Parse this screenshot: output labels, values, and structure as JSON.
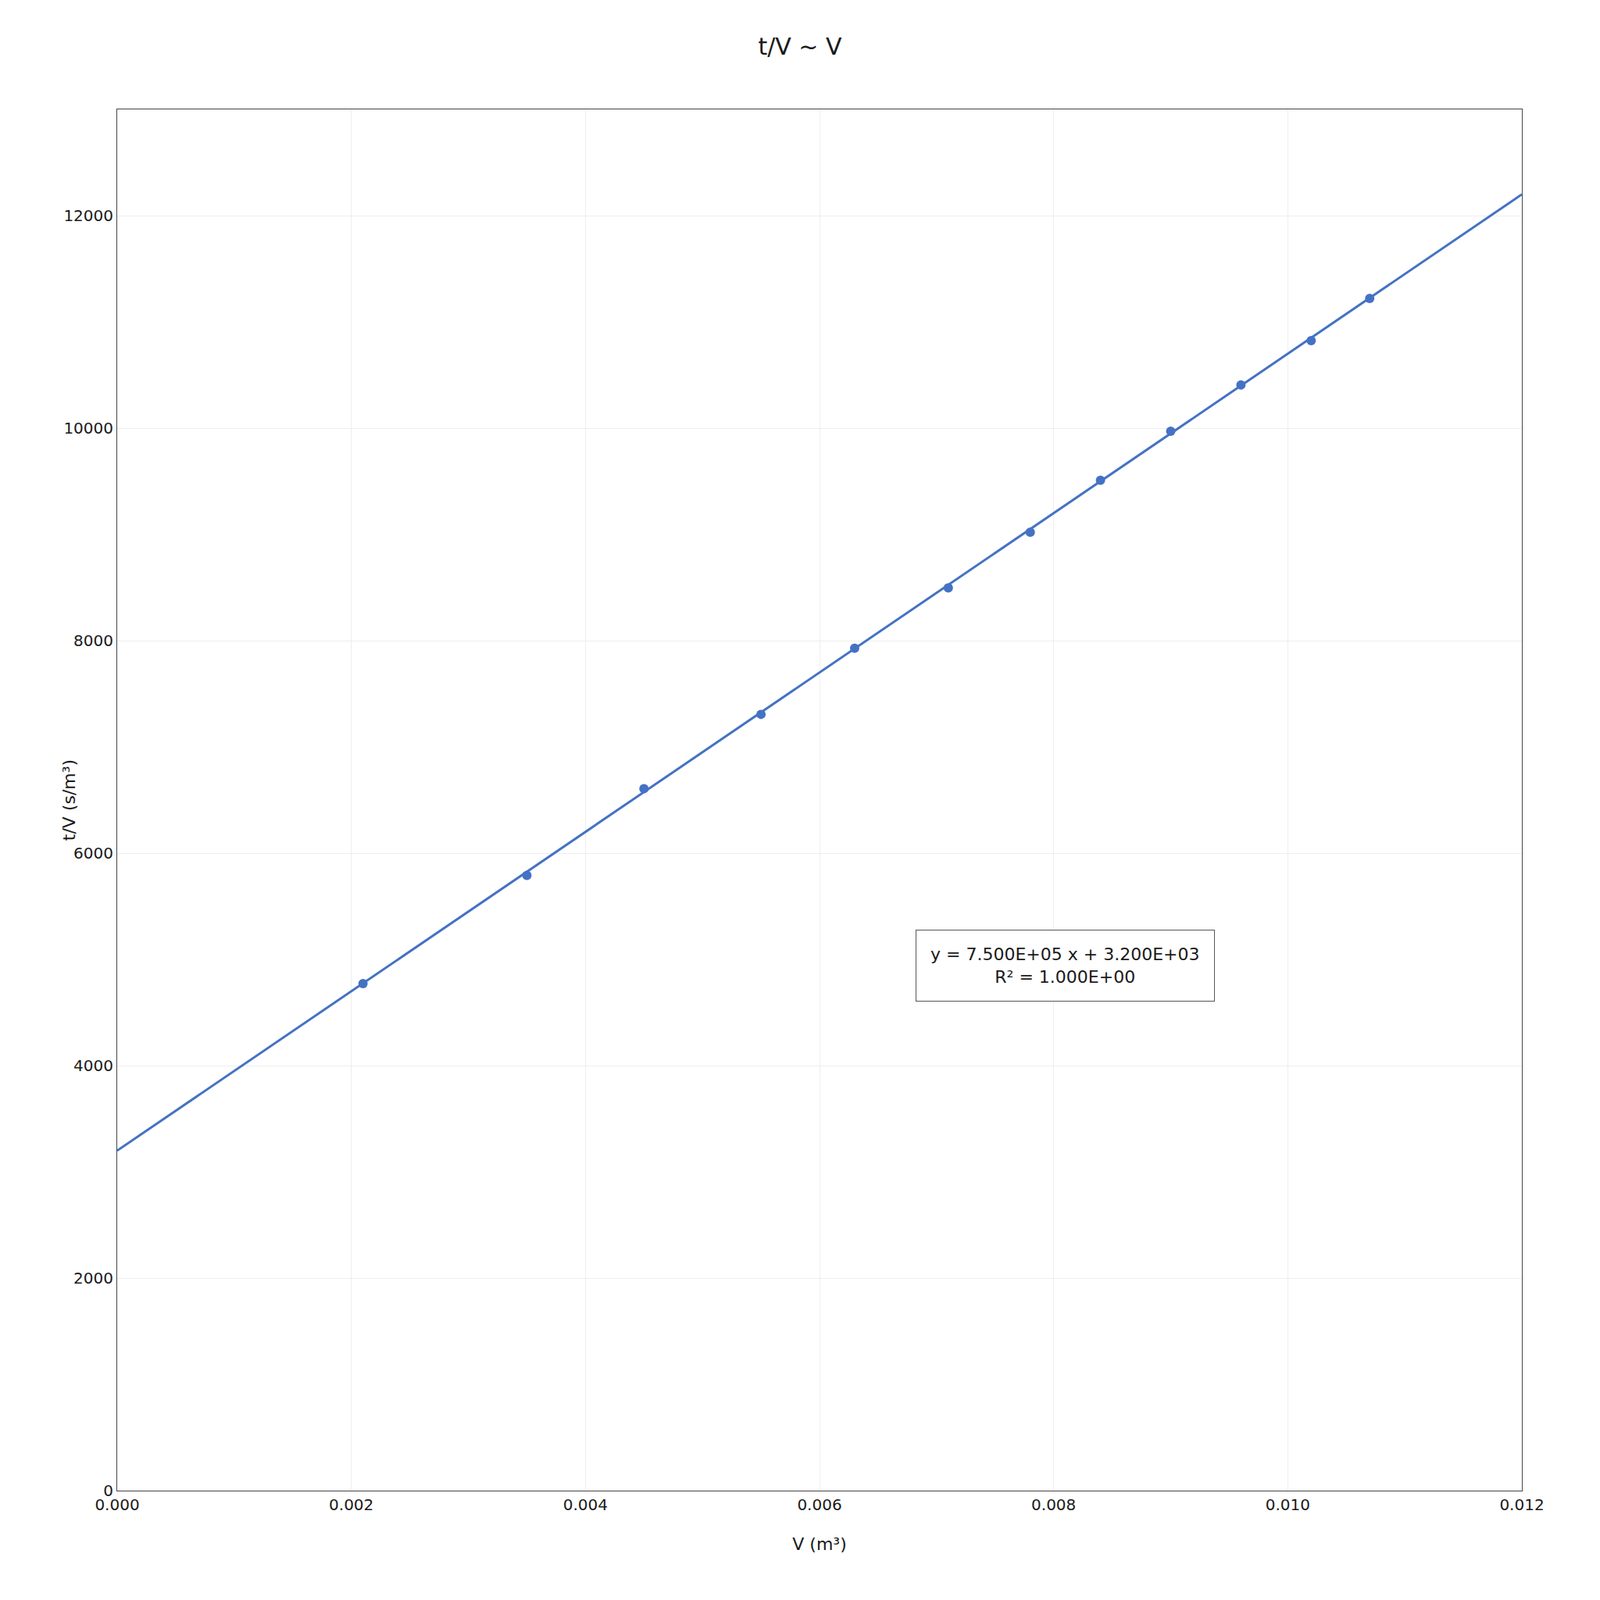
{
  "chart_data": {
    "type": "scatter",
    "title": "t/V ~ V",
    "x_label": "V (m³)",
    "y_label": "t/V (s/m³)",
    "series": [
      {
        "type": "scatter",
        "marker": "circle",
        "color": "#4472C4",
        "x": [
          0.0021,
          0.0035,
          0.0045,
          0.0055,
          0.0063,
          0.0071,
          0.0078,
          0.0084,
          0.009,
          0.0096,
          0.0102,
          0.0107
        ],
        "values": [
          4772,
          5790,
          6606,
          7306,
          7929,
          8496,
          9020,
          9509,
          9970,
          10407,
          10823,
          11221
        ]
      },
      {
        "type": "line",
        "line_style": "solid",
        "color": "#4472C4",
        "x": [
          0.0,
          0.012
        ],
        "values": [
          3200,
          12200
        ]
      }
    ],
    "xlim": [
      0.0,
      0.012
    ],
    "ylim": [
      0,
      13000
    ],
    "xticks": [
      {
        "value": 0.0,
        "label": "0.000"
      },
      {
        "value": 0.002,
        "label": "0.002"
      },
      {
        "value": 0.004,
        "label": "0.004"
      },
      {
        "value": 0.006,
        "label": "0.006"
      },
      {
        "value": 0.008,
        "label": "0.008"
      },
      {
        "value": 0.01,
        "label": "0.010"
      },
      {
        "value": 0.012,
        "label": "0.012"
      }
    ],
    "yticks": [
      0,
      2000,
      4000,
      6000,
      8000,
      10000,
      12000
    ],
    "annotations": [
      "y = 7.500E+05 x + 3.200E+03",
      "R² = 1.000E+00"
    ],
    "grid": true
  }
}
